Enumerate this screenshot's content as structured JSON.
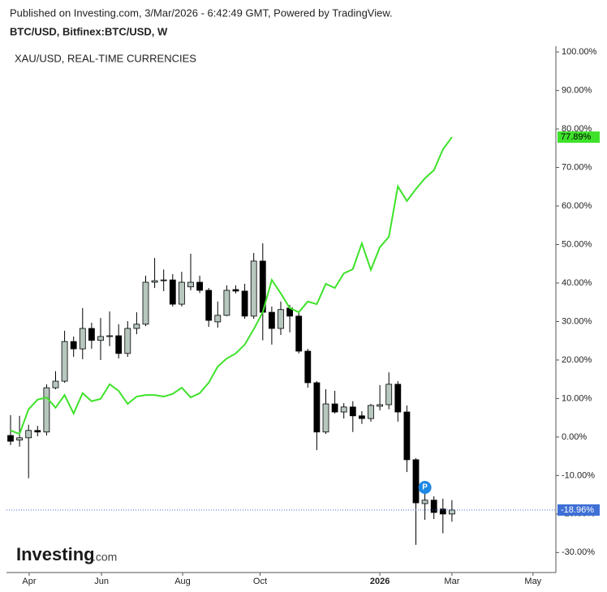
{
  "header": {
    "published": "Published on Investing.com, 3/Mar/2026 - 6:42:49 GMT, Powered by TradingView.",
    "logo": "Investing",
    "logo_suffix": ".com"
  },
  "chart_data": {
    "type": "candlestick",
    "ylim": [
      -35.2,
      101.5
    ],
    "yticks": [
      {
        "value": 100,
        "label": "100.00%"
      },
      {
        "value": 90,
        "label": "90.00%"
      },
      {
        "value": 80,
        "label": "80.00%"
      },
      {
        "value": 70,
        "label": "70.00%"
      },
      {
        "value": 60,
        "label": "60.00%"
      },
      {
        "value": 50,
        "label": "50.00%"
      },
      {
        "value": 40,
        "label": "40.00%"
      },
      {
        "value": 30,
        "label": "30.00%"
      },
      {
        "value": 20,
        "label": "20.00%"
      },
      {
        "value": 10,
        "label": "10.00%"
      },
      {
        "value": 0,
        "label": "0.00%"
      },
      {
        "value": -10,
        "label": "-10.00%"
      },
      {
        "value": -20,
        "label": "-20.00%"
      },
      {
        "value": -30,
        "label": "-30.00%"
      }
    ],
    "xlim": [
      -0.45,
      60.54
    ],
    "xticks": [
      {
        "value": 2.07,
        "label": "Apr"
      },
      {
        "value": 10.1,
        "label": "Jun"
      },
      {
        "value": 19.1,
        "label": "Aug"
      },
      {
        "value": 27.7,
        "label": "Oct"
      },
      {
        "value": 41,
        "label": "2026"
      },
      {
        "value": 49,
        "label": "Mar"
      },
      {
        "value": 58,
        "label": "May"
      }
    ],
    "marker": "P",
    "series": [
      {
        "name": "BTC/USD, Bitfinex:BTC/USD, W",
        "type": "candlestick",
        "up_color": "#b7c7be",
        "down_color": "#000000",
        "last_label": "-18.96%",
        "last_color": "#3d6fd6",
        "open": [
          0.4,
          -0.8,
          -0.2,
          1.7,
          1.3,
          12.8,
          14.5,
          24.8,
          22.9,
          28.2,
          25.1,
          26.1,
          26.3,
          21.7,
          28.2,
          29.3,
          40.2,
          40.6,
          40.8,
          34.5,
          39,
          40.2,
          38.1,
          29.9,
          31.6,
          38.3,
          37.9,
          31.4,
          45.7,
          32.4,
          28.2,
          33.5,
          31.4,
          22.3,
          14.1,
          1.3,
          8.6,
          6.5,
          7.8,
          5.5,
          4.8,
          8,
          8.4,
          13.7,
          6.5,
          -5.9,
          -17.3,
          -16.4,
          -18.7,
          -20
        ],
        "high": [
          5.7,
          5.5,
          3.2,
          2.9,
          13.7,
          17.1,
          27.6,
          26.1,
          33.5,
          29.7,
          30.9,
          32.6,
          29.3,
          30.1,
          32.4,
          41.9,
          46.5,
          43.5,
          42.3,
          42.9,
          47.6,
          41.9,
          38.7,
          35.2,
          39.4,
          39.4,
          39.8,
          47.8,
          50.3,
          33.9,
          35.2,
          34.3,
          32.4,
          22.9,
          14.5,
          12.4,
          12,
          8.8,
          9.3,
          6.7,
          8.6,
          13.5,
          16.8,
          14.5,
          8.2,
          -5.5,
          -13.9,
          -15.4,
          -16,
          -16.4
        ],
        "low": [
          -2.1,
          -2.5,
          -10.7,
          0.2,
          0.4,
          12.4,
          14.1,
          20.8,
          20.2,
          22.9,
          20,
          23.6,
          20.4,
          20.8,
          26.7,
          28.8,
          38.7,
          37.9,
          33.9,
          33.9,
          38.1,
          37.4,
          28.6,
          28.4,
          31.4,
          37.3,
          30.7,
          30.7,
          25.1,
          24,
          26.5,
          27.2,
          21.7,
          12.8,
          -3.4,
          0.8,
          6.1,
          4.8,
          1.3,
          3.4,
          4,
          6.9,
          7.2,
          4,
          -9.1,
          -28,
          -21.5,
          -21.3,
          -25,
          -22
        ],
        "close": [
          -1.1,
          -0.2,
          1.7,
          1.3,
          12.8,
          14.5,
          24.8,
          22.9,
          28.2,
          25.1,
          26.1,
          26.3,
          21.7,
          28.2,
          29.3,
          40.2,
          40.6,
          40.8,
          34.5,
          40.2,
          40.2,
          38.1,
          30.3,
          31.6,
          38.1,
          37.9,
          31.4,
          45.7,
          32.4,
          28.2,
          33.1,
          31.4,
          22.3,
          14.1,
          1.3,
          8.6,
          6.5,
          7.8,
          5.5,
          4.8,
          8.2,
          8.4,
          13.7,
          6.5,
          -5.9,
          -17.1,
          -16.4,
          -19.6,
          -20,
          -18.96
        ]
      },
      {
        "name": "XAU/USD, REAL-TIME CURRENCIES",
        "type": "line",
        "color": "#3ee22a",
        "last_label": "77.89%",
        "values": [
          1.7,
          0.8,
          7.2,
          9.7,
          10.3,
          7.6,
          10.9,
          6.1,
          11.4,
          9.3,
          9.9,
          13.7,
          12,
          8.6,
          10.5,
          10.9,
          10.9,
          10.5,
          11.2,
          12.8,
          10.3,
          11.4,
          14.1,
          18.3,
          20.4,
          21.7,
          24,
          28,
          32.4,
          40.8,
          37.3,
          33.5,
          32.4,
          35.2,
          34.5,
          39.8,
          38.7,
          42.5,
          43.6,
          50.3,
          43.4,
          49.3,
          52,
          65.1,
          61.3,
          64.4,
          67.2,
          69.3,
          74.7,
          77.89
        ]
      }
    ]
  }
}
